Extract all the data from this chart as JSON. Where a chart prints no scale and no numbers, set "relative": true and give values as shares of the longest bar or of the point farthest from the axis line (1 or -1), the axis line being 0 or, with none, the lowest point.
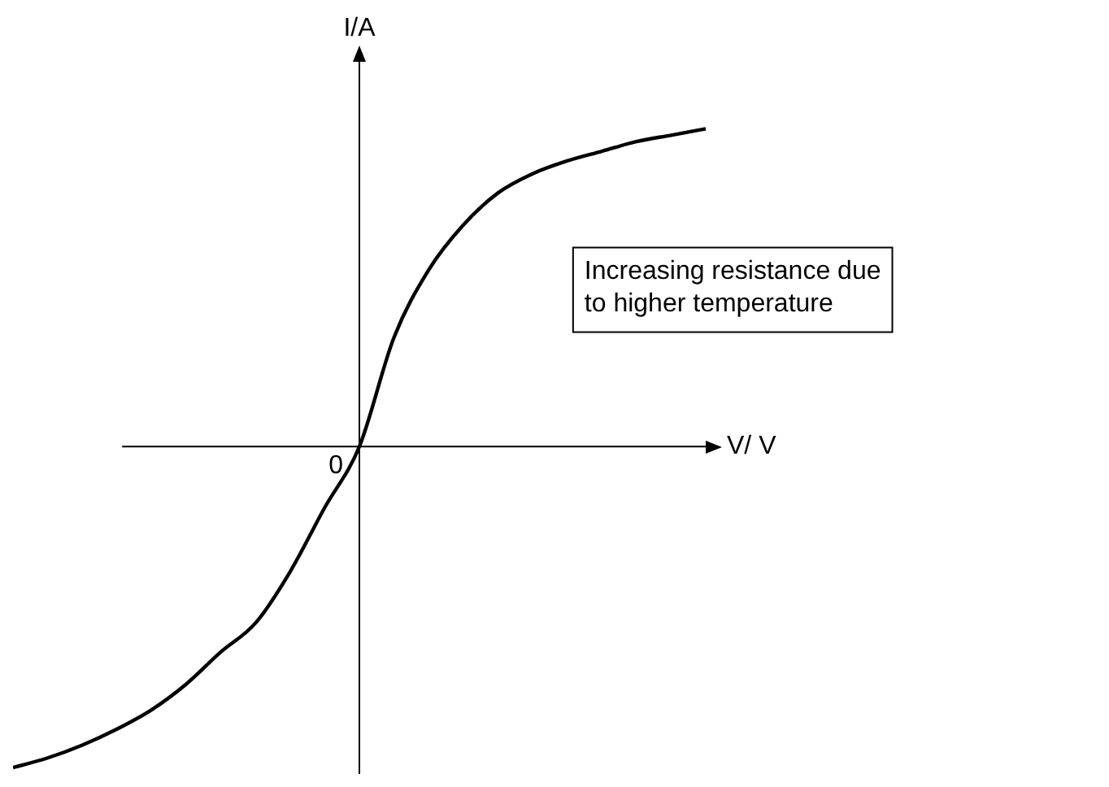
{
  "chart_data": {
    "type": "line",
    "relative": true,
    "xlabel": "V/ V",
    "ylabel": "I/A",
    "categories": [
      null,
      null,
      null,
      null,
      null,
      null,
      null,
      null,
      null,
      null,
      null,
      null,
      null,
      null,
      null,
      null,
      null,
      null,
      null,
      null,
      null
    ],
    "series": [
      {
        "color": "#000000",
        "values": [
          -1.0,
          -0.97,
          -0.93,
          -0.88,
          -0.82,
          -0.74,
          -0.64,
          -0.55,
          -0.39,
          -0.19,
          0,
          0.34,
          0.55,
          0.69,
          0.79,
          0.85,
          0.89,
          0.92,
          0.95,
          0.97,
          0.99
        ]
      }
    ],
    "annotations": [
      "0",
      "Increasing resistance due to higher temperature"
    ]
  }
}
